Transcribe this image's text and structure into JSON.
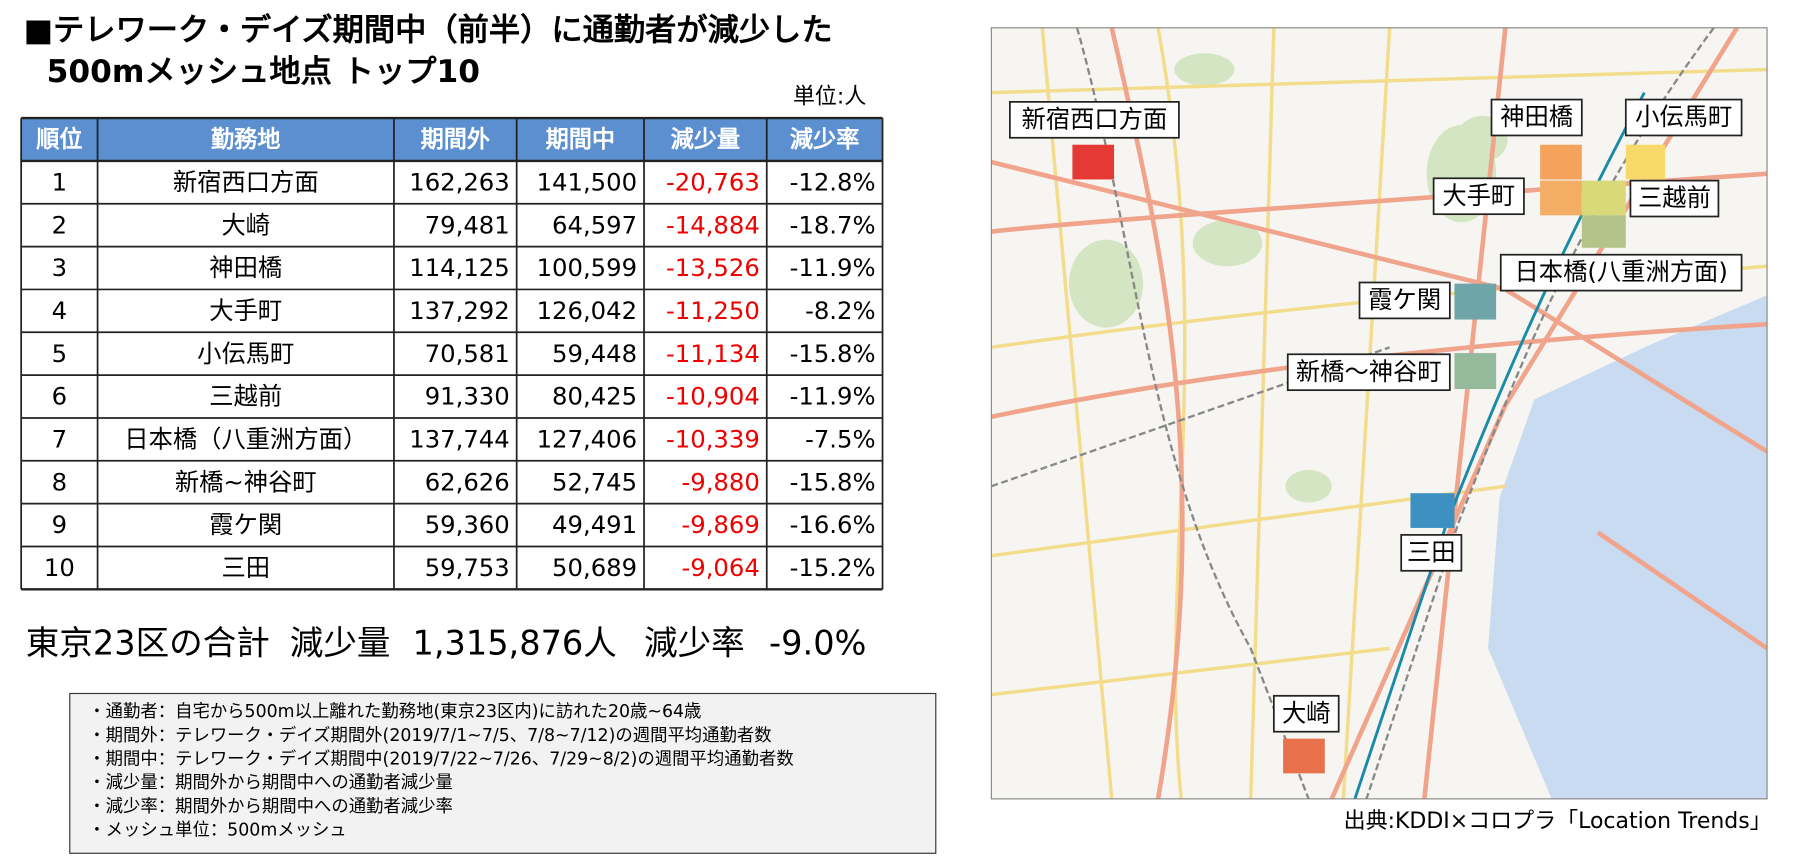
{
  "title": {
    "line1": "■テレワーク・デイズ期間中（前半）に通勤者が減少した",
    "line2": "500mメッシュ地点 トップ10"
  },
  "unit": "単位:人",
  "table": {
    "header": [
      "順位",
      "勤務地",
      "期間外",
      "期間中",
      "減少量",
      "減少率"
    ],
    "rows": [
      [
        "1",
        "新宿西口方面",
        "162,263",
        "141,500",
        "-20,763",
        "-12.8%"
      ],
      [
        "2",
        "大崎",
        "79,481",
        "64,597",
        "-14,884",
        "-18.7%"
      ],
      [
        "3",
        "神田橋",
        "114,125",
        "100,599",
        "-13,526",
        "-11.9%"
      ],
      [
        "4",
        "大手町",
        "137,292",
        "126,042",
        "-11,250",
        "-8.2%"
      ],
      [
        "5",
        "小伝馬町",
        "70,581",
        "59,448",
        "-11,134",
        "-15.8%"
      ],
      [
        "6",
        "三越前",
        "91,330",
        "80,425",
        "-10,904",
        "-11.9%"
      ],
      [
        "7",
        "日本橋（八重洲方面）",
        "137,744",
        "127,406",
        "-10,339",
        "-7.5%"
      ],
      [
        "8",
        "新橋~神谷町",
        "62,626",
        "52,745",
        "-9,880",
        "-15.8%"
      ],
      [
        "9",
        "霞ケ関",
        "59,360",
        "49,491",
        "-9,869",
        "-16.6%"
      ],
      [
        "10",
        "三田",
        "59,753",
        "50,689",
        "-9,064",
        "-15.2%"
      ]
    ]
  },
  "summary": {
    "label": "東京23区の合計",
    "decrease_label": "減少量",
    "decrease": "1,315,876人",
    "rate_label": "減少率",
    "rate": "-9.0%"
  },
  "notes": [
    "・通勤者：自宅から500m以上離れた勤務地(東京23区内)に訪れた20歳~64歳",
    "・期間外：テレワーク・デイズ期間外(2019/7/1~7/5、7/8~7/12)の週間平均通勤者数",
    "・期間中：テレワーク・デイズ期間中(2019/7/22~7/26、7/29~8/2)の週間平均通勤者数",
    "・減少量：期間外から期間中への通勤者減少量",
    "・減少率：期間外から期間中への通勤者減少率",
    "・メッシュ単位：500mメッシュ"
  ],
  "map": {
    "labels": [
      "新宿西口方面",
      "神田橋",
      "小伝馬町",
      "大手町",
      "三越前",
      "日本橋(八重洲方面)",
      "霞ケ関",
      "新橋～神谷町",
      "三田",
      "大崎"
    ]
  },
  "source": "出典:KDDI×コロプラ「Location Trends」"
}
